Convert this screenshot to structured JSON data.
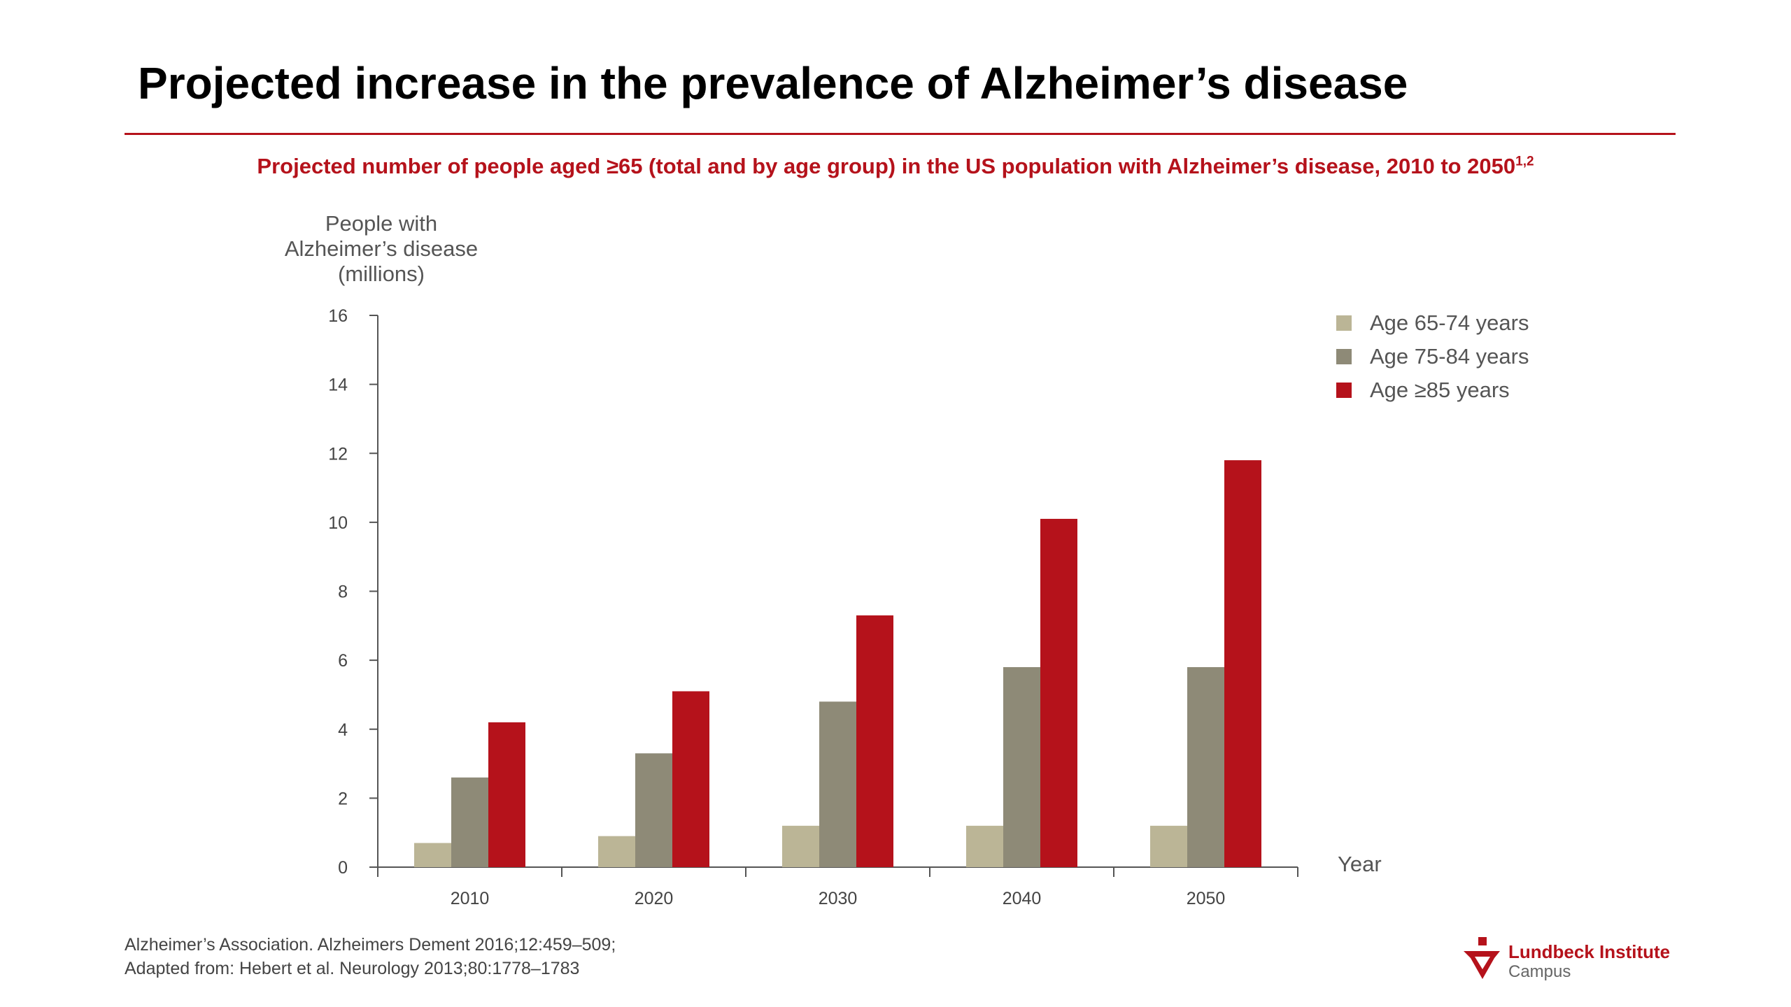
{
  "slide": {
    "title": "Projected increase in the prevalence of Alzheimer’s disease",
    "footnote_line1": "Alzheimer’s Association. Alzheimers Dement 2016;12:459–509;",
    "footnote_line2": "Adapted from: Hebert et al. Neurology 2013;80:1778–1783",
    "logo_name": "Lundbeck Institute",
    "logo_sub": "Campus"
  },
  "colors": {
    "accent": "#b5121b",
    "series": [
      "#bbb596",
      "#8e8a77",
      "#b5121b"
    ]
  },
  "chart_data": {
    "type": "bar",
    "title": "Projected number of people aged ≥65 (total and by age group) in the US population with Alzheimer’s disease, 2010 to 2050",
    "title_superscript": "1,2",
    "ylabel_lines": [
      "People with",
      "Alzheimer’s disease",
      "(millions)"
    ],
    "xlabel": "Year",
    "categories": [
      "2010",
      "2020",
      "2030",
      "2040",
      "2050"
    ],
    "ylim": [
      0,
      16
    ],
    "yticks": [
      0,
      2,
      4,
      6,
      8,
      10,
      12,
      14,
      16
    ],
    "grid": false,
    "legend_position": "top-right",
    "series": [
      {
        "name": "Age 65-74 years",
        "values": [
          0.7,
          0.9,
          1.2,
          1.2,
          1.2
        ]
      },
      {
        "name": "Age 75-84 years",
        "values": [
          2.6,
          3.3,
          4.8,
          5.8,
          5.8
        ]
      },
      {
        "name": "Age ≥85 years",
        "values": [
          4.2,
          5.1,
          7.3,
          10.1,
          11.8
        ]
      }
    ]
  }
}
